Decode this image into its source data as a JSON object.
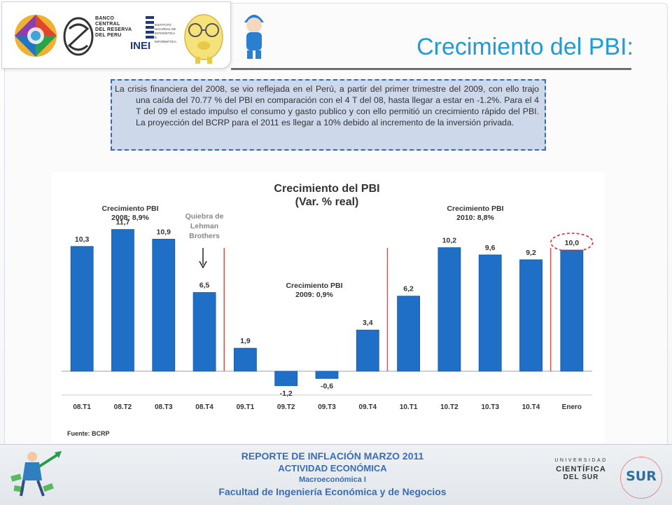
{
  "slide_title": "Crecimiento del PBI:",
  "logos": {
    "bcrp_lines": [
      "BANCO",
      "CENTRAL",
      "DEL RESERVA",
      "DEL PERU"
    ],
    "inei": "INEI",
    "inei_sub_lines": [
      "INSTITUTO",
      "NACIONAL DE",
      "ESTADÍSTICA",
      "E",
      "INFORMÁTICA"
    ]
  },
  "paragraph": "La crisis financiera del 2008, se vio reflejada en el Perú, a partir del primer trimestre del 2009, con ello trajo una caída del 70.77 % del PBI en comparación con el 4 T del 08, hasta llegar a estar en -1.2%. Para el 4 T del 09 el estado impulso el consumo y gasto publico y con ello permitió un crecimiento rápido del PBI. La proyección del BCRP para el 2011 es llegar a 10% debido al incremento de la inversión privada.",
  "chart_data": {
    "type": "bar",
    "title": "Crecimiento del PBI",
    "subtitle": "(Var. % real)",
    "categories": [
      "08.T1",
      "08.T2",
      "08.T3",
      "08.T4",
      "09.T1",
      "09.T2",
      "09.T3",
      "09.T4",
      "10.T1",
      "10.T2",
      "10.T3",
      "10.T4",
      "Enero"
    ],
    "values": [
      10.3,
      11.7,
      10.9,
      6.5,
      1.9,
      -1.2,
      -0.6,
      3.4,
      6.2,
      10.2,
      9.6,
      9.2,
      10.0
    ],
    "value_labels": [
      "10,3",
      "11,7",
      "10,9",
      "6,5",
      "1,9",
      "-1,2",
      "-0,6",
      "3,4",
      "6,2",
      "10,2",
      "9,6",
      "9,2",
      "10,0"
    ],
    "ylim": [
      -2,
      13
    ],
    "bar_color": "#1f6fc7",
    "separator_color": "#d9534f",
    "highlight_color": "#e0283a",
    "highlighted_category": "Enero",
    "annotations": {
      "y2008_title": "Crecimiento PBI",
      "y2008_value": "2008: 8,9%",
      "y2009_title": "Crecimiento PBI",
      "y2009_value": "2009: 0,9%",
      "y2010_title": "Crecimiento PBI",
      "y2010_value": "2010: 8,8%",
      "lehman_lines": [
        "Quiebra de",
        "Lehman",
        "Brothers"
      ]
    },
    "source": "Fuente: BCRP"
  },
  "footer": {
    "line1": "REPORTE DE INFLACIÓN MARZO 2011",
    "line2": "ACTIVIDAD ECONÓMICA",
    "line3": "Macroeconómica I",
    "line4": "Facultad de Ingeniería Económica y de Negocios"
  },
  "university": {
    "line1": "UNIVERSIDAD",
    "line2": "CIENTÍFICA",
    "line3": "DEL SUR",
    "seal": "SUR"
  }
}
